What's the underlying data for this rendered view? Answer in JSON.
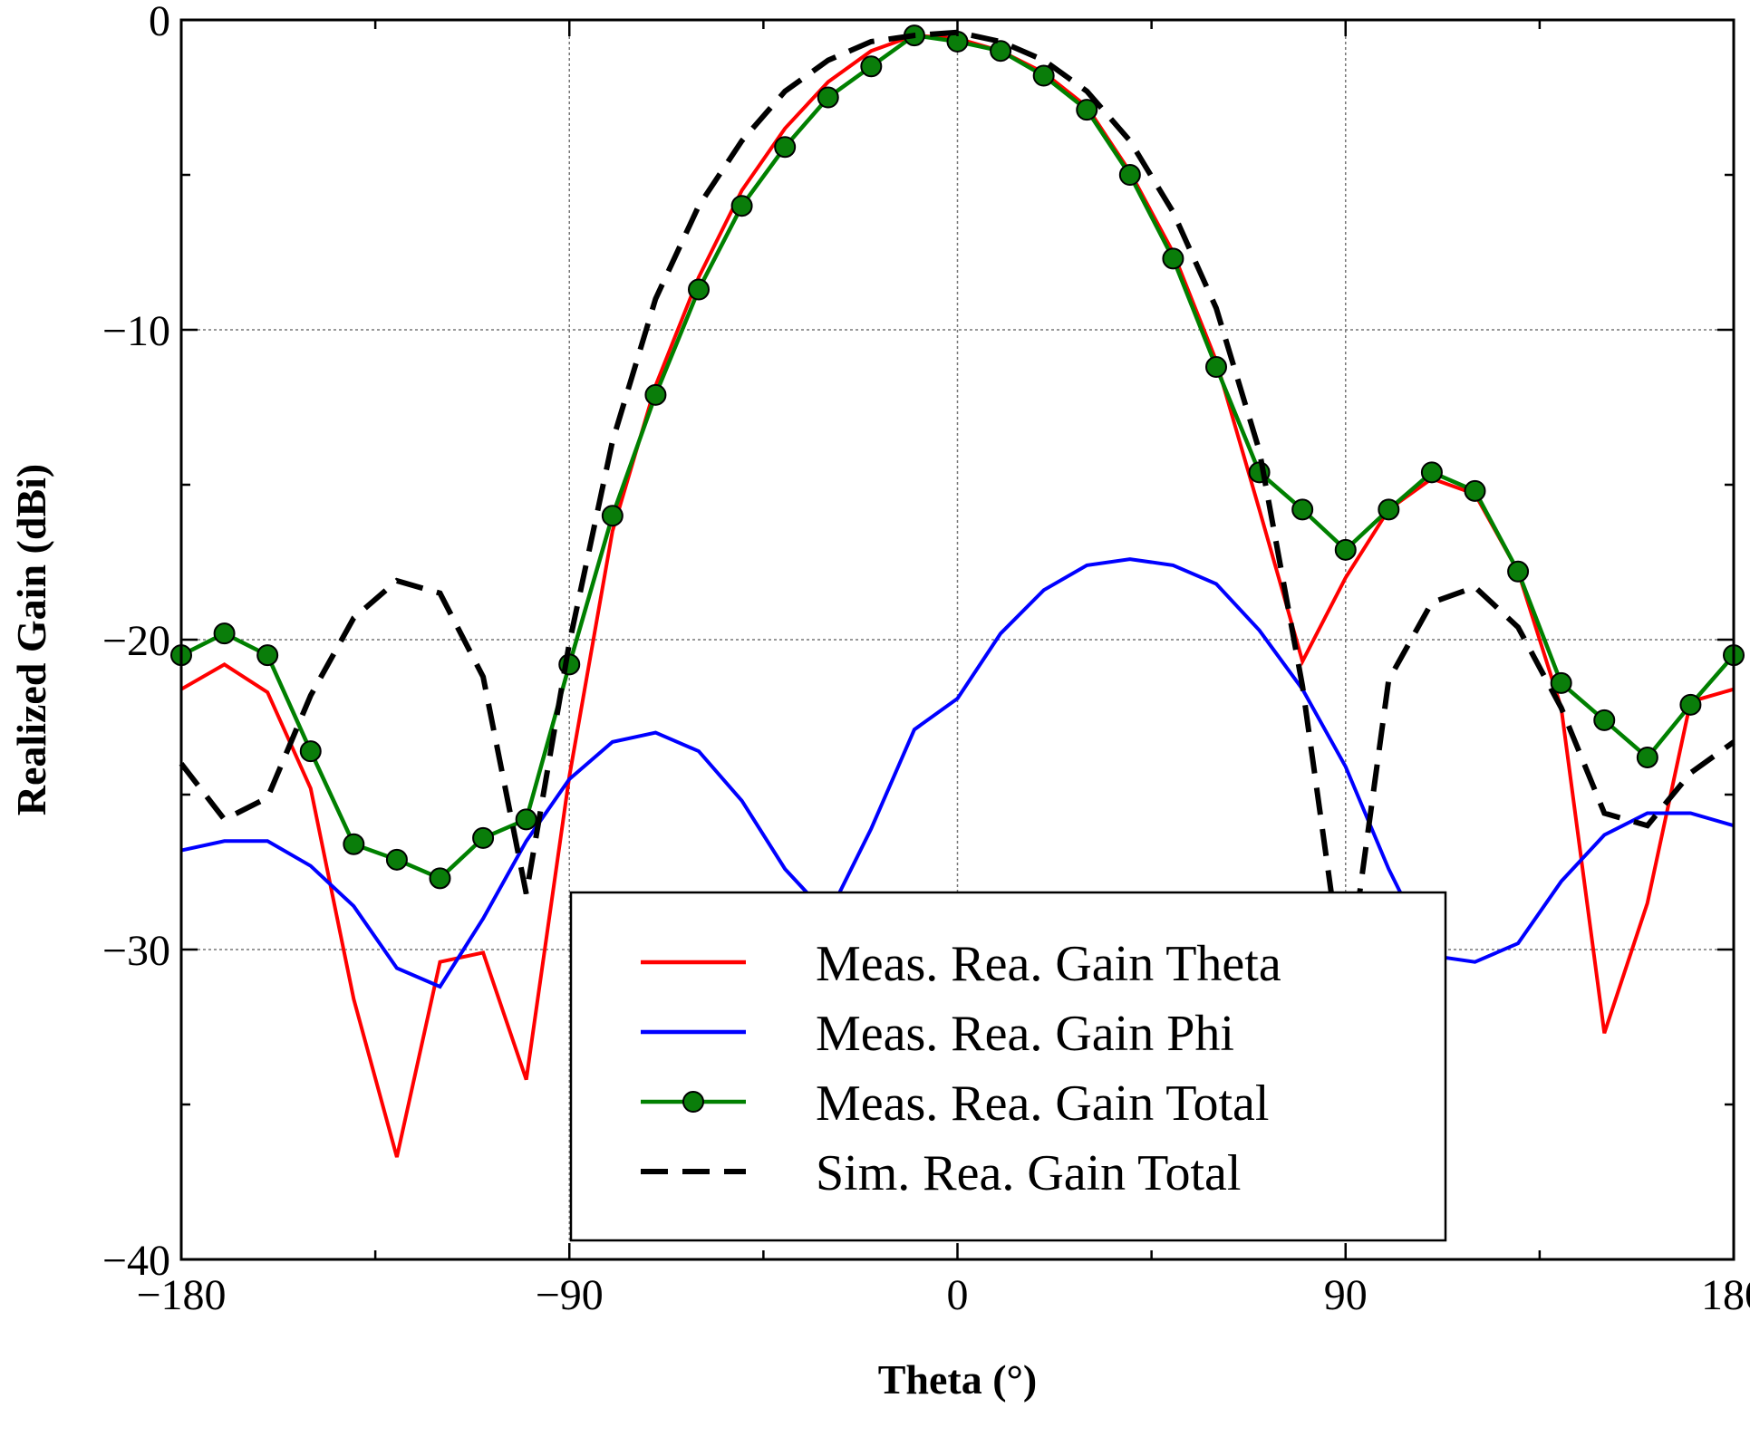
{
  "chart_data": {
    "type": "line",
    "title": "",
    "xlabel": "Theta (°)",
    "ylabel": "Realized Gain (dBi)",
    "xlim": [
      -180,
      180
    ],
    "ylim": [
      -40,
      0
    ],
    "xticks": [
      -180,
      -90,
      0,
      90,
      180
    ],
    "yticks": [
      -40,
      -30,
      -20,
      -10,
      0
    ],
    "xtick_labels": [
      "−180",
      "−90",
      "0",
      "90",
      "180"
    ],
    "ytick_labels": [
      "−40",
      "−30",
      "−20",
      "−10",
      "0"
    ],
    "grid": true,
    "legend_position": "lower-center",
    "x": [
      -180,
      -170,
      -160,
      -150,
      -140,
      -130,
      -120,
      -110,
      -100,
      -90,
      -80,
      -70,
      -60,
      -50,
      -40,
      -30,
      -20,
      -10,
      0,
      10,
      20,
      30,
      40,
      50,
      60,
      70,
      80,
      90,
      100,
      110,
      120,
      130,
      140,
      150,
      160,
      170,
      180
    ],
    "series": [
      {
        "name": "Meas. Rea. Gain Theta",
        "color": "#ff0000",
        "style": "solid",
        "values": [
          -21.6,
          -20.8,
          -21.7,
          -24.8,
          -31.6,
          -36.7,
          -30.4,
          -30.1,
          -34.2,
          -24.4,
          -16.5,
          -11.8,
          -8.3,
          -5.5,
          -3.5,
          -2.0,
          -1.0,
          -0.5,
          -0.6,
          -1.0,
          -1.7,
          -2.8,
          -4.9,
          -7.5,
          -11.0,
          -15.8,
          -20.7,
          -18.0,
          -15.8,
          -14.8,
          -15.3,
          -17.8,
          -22.2,
          -32.7,
          -28.5,
          -22.0,
          -21.6
        ]
      },
      {
        "name": "Meas. Rea. Gain Phi",
        "color": "#0000ff",
        "style": "solid",
        "values": [
          -26.8,
          -26.5,
          -26.5,
          -27.3,
          -28.6,
          -30.6,
          -31.2,
          -29.0,
          -26.5,
          -24.5,
          -23.3,
          -23.0,
          -23.6,
          -25.2,
          -27.4,
          -28.9,
          -26.1,
          -22.9,
          -21.9,
          -19.8,
          -18.4,
          -17.6,
          -17.4,
          -17.6,
          -18.2,
          -19.7,
          -21.6,
          -24.1,
          -27.4,
          -30.2,
          -30.4,
          -29.8,
          -27.8,
          -26.3,
          -25.6,
          -25.6,
          -26.0
        ]
      },
      {
        "name": "Meas. Rea. Gain Total",
        "color": "#008000",
        "marker_color": "#0a7d0a",
        "style": "solid",
        "marker": "circle",
        "values": [
          -20.5,
          -19.8,
          -20.5,
          -23.6,
          -26.6,
          -27.1,
          -27.7,
          -26.4,
          -25.8,
          -20.8,
          -16.0,
          -12.1,
          -8.7,
          -6.0,
          -4.1,
          -2.5,
          -1.5,
          -0.5,
          -0.7,
          -1.0,
          -1.8,
          -2.9,
          -5.0,
          -7.7,
          -11.2,
          -14.6,
          -15.8,
          -17.1,
          -15.8,
          -14.6,
          -15.2,
          -17.8,
          -21.4,
          -22.6,
          -23.8,
          -22.1,
          -20.5
        ]
      },
      {
        "name": "Sim. Rea. Gain Total",
        "color": "#000000",
        "style": "dashed",
        "values": [
          -24.0,
          -25.8,
          -25.1,
          -21.8,
          -19.3,
          -18.1,
          -18.5,
          -21.2,
          -28.2,
          -20.1,
          -13.6,
          -9.0,
          -6.0,
          -3.9,
          -2.3,
          -1.3,
          -0.7,
          -0.5,
          -0.4,
          -0.7,
          -1.3,
          -2.3,
          -3.9,
          -6.2,
          -9.3,
          -13.9,
          -21.5,
          -31.5,
          -21.3,
          -18.8,
          -18.3,
          -19.6,
          -22.2,
          -25.6,
          -26.0,
          -24.3,
          -23.3
        ]
      }
    ]
  }
}
